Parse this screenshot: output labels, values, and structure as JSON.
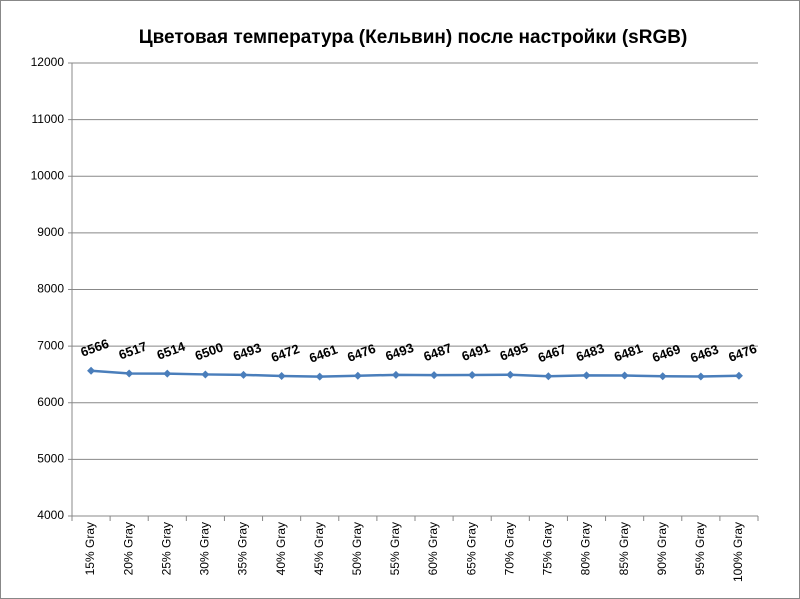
{
  "chart_data": {
    "type": "line",
    "title": "Цветовая температура (Кельвин) после настройки (sRGB)",
    "categories": [
      "15% Gray",
      "20% Gray",
      "25% Gray",
      "30% Gray",
      "35% Gray",
      "40% Gray",
      "45% Gray",
      "50% Gray",
      "55% Gray",
      "60% Gray",
      "65% Gray",
      "70% Gray",
      "75% Gray",
      "80% Gray",
      "85% Gray",
      "90% Gray",
      "95% Gray",
      "100% Gray"
    ],
    "values": [
      6566,
      6517,
      6514,
      6500,
      6493,
      6472,
      6461,
      6476,
      6493,
      6487,
      6491,
      6495,
      6467,
      6483,
      6481,
      6469,
      6463,
      6476
    ],
    "color": "#4a7ebb",
    "ylim": [
      4000,
      12000
    ],
    "yticks": [
      4000,
      5000,
      6000,
      7000,
      8000,
      9000,
      10000,
      11000,
      12000
    ],
    "grid": true
  }
}
